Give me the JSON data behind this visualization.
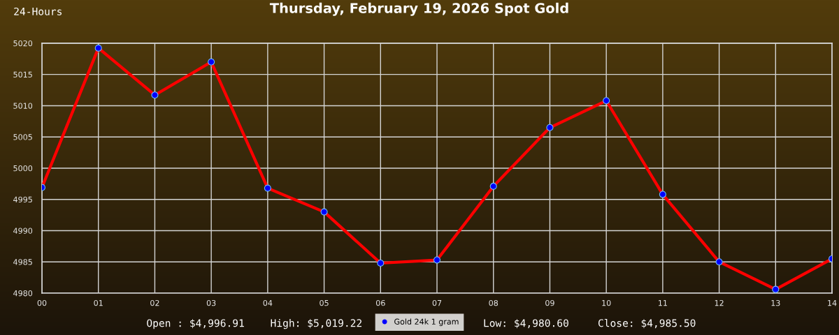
{
  "chart_data": {
    "type": "line",
    "title": "Thursday, February 19, 2026 Spot Gold",
    "subtitle": "24-Hours",
    "x": [
      0,
      1,
      2,
      3,
      4,
      5,
      6,
      7,
      8,
      9,
      10,
      11,
      12,
      13,
      14
    ],
    "series": [
      {
        "name": "Gold 24k 1 gram",
        "color": "#ff0000",
        "colors": [
          "#0000ff",
          "#0000ff",
          "#0000ff",
          "#0000ff",
          "#0000ff",
          "#0000ff",
          "#0000ff",
          "#0000ff",
          "#0000ff",
          "#0000ff",
          "#0000ff",
          "#0000ff",
          "#0000ff",
          "#0000ff",
          "#0000ff"
        ],
        "values": [
          4996.91,
          5019.22,
          5011.7,
          5017.0,
          4996.8,
          4993.0,
          4984.8,
          4985.3,
          4997.1,
          5006.5,
          5010.8,
          4995.8,
          4985.0,
          4980.6,
          4985.5
        ]
      }
    ],
    "xlim": [
      0,
      14
    ],
    "xticks": [
      {
        "value": 0,
        "label": "00"
      },
      {
        "value": 1,
        "label": "01"
      },
      {
        "value": 2,
        "label": "02"
      },
      {
        "value": 3,
        "label": "03"
      },
      {
        "value": 4,
        "label": "04"
      },
      {
        "value": 5,
        "label": "05"
      },
      {
        "value": 6,
        "label": "06"
      },
      {
        "value": 7,
        "label": "07"
      },
      {
        "value": 8,
        "label": "08"
      },
      {
        "value": 9,
        "label": "09"
      },
      {
        "value": 10,
        "label": "10"
      },
      {
        "value": 11,
        "label": "11"
      },
      {
        "value": 12,
        "label": "12"
      },
      {
        "value": 13,
        "label": "13"
      },
      {
        "value": 14,
        "label": "14"
      }
    ],
    "ylim": [
      4980,
      5020
    ],
    "yticks": [
      4980,
      4985,
      4990,
      4995,
      5000,
      5005,
      5010,
      5015,
      5020
    ],
    "grid": true,
    "legend": "bottom",
    "marker": "circle",
    "line_style": "solid",
    "annotations": [
      "Open : $4,996.91",
      "High: $5,019.22",
      "Low: $4,980.60",
      "Close: $4,985.50"
    ]
  }
}
